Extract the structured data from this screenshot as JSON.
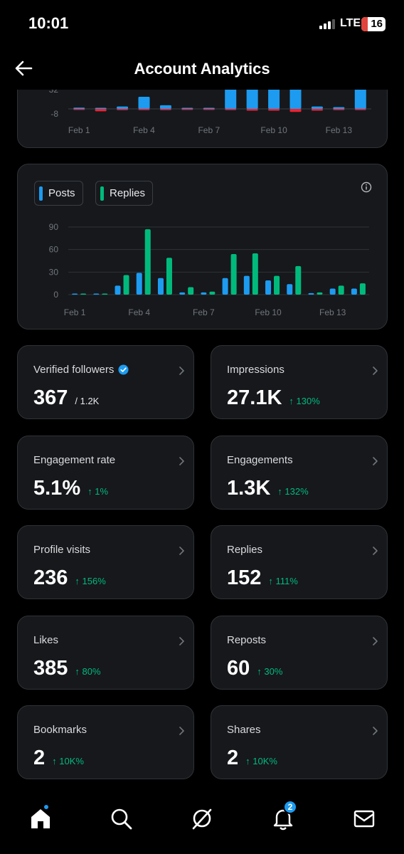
{
  "status_bar": {
    "time": "10:01",
    "network": "LTE",
    "battery": "16"
  },
  "header": {
    "title": "Account Analytics"
  },
  "colors": {
    "blue": "#1d9bf0",
    "red": "#f4212e",
    "green": "#00ba7c"
  },
  "chart_data": [
    {
      "type": "bar",
      "title": "",
      "yticks": [
        "32",
        "-8"
      ],
      "xticks": [
        "Feb 1",
        "Feb 4",
        "Feb 7",
        "Feb 10",
        "Feb 13"
      ],
      "categories": [
        "Feb 1",
        "Feb 2",
        "Feb 3",
        "Feb 4",
        "Feb 5",
        "Feb 6",
        "Feb 7",
        "Feb 8",
        "Feb 9",
        "Feb 10",
        "Feb 11",
        "Feb 12",
        "Feb 13",
        "Feb 14"
      ],
      "series": [
        {
          "values": [
            2,
            0,
            4,
            20,
            6,
            1,
            0,
            42,
            38,
            44,
            34,
            4,
            3,
            34
          ]
        },
        {
          "values": [
            -1,
            -4,
            -2,
            -2,
            -2,
            -1,
            -1,
            -2,
            -3,
            -3,
            -5,
            -3,
            -2,
            -2
          ]
        }
      ]
    },
    {
      "type": "bar",
      "yticks": [
        "90",
        "60",
        "30",
        "0"
      ],
      "ylim": [
        0,
        90
      ],
      "xticks": [
        "Feb 1",
        "Feb 4",
        "Feb 7",
        "Feb 10",
        "Feb 13"
      ],
      "categories": [
        "Feb 1",
        "Feb 2",
        "Feb 3",
        "Feb 4",
        "Feb 5",
        "Feb 6",
        "Feb 7",
        "Feb 8",
        "Feb 9",
        "Feb 10",
        "Feb 11",
        "Feb 12",
        "Feb 13",
        "Feb 14"
      ],
      "series": [
        {
          "name": "Posts",
          "values": [
            0,
            1,
            12,
            29,
            22,
            3,
            3,
            22,
            25,
            19,
            14,
            2,
            8,
            8
          ]
        },
        {
          "name": "Replies",
          "values": [
            1,
            0,
            26,
            87,
            49,
            10,
            4,
            54,
            55,
            25,
            38,
            3,
            12,
            15
          ]
        }
      ]
    }
  ],
  "legend": {
    "posts": "Posts",
    "replies": "Replies"
  },
  "metrics": [
    {
      "label": "Verified followers",
      "value": "367",
      "sub": "/ 1.2K",
      "change": ""
    },
    {
      "label": "Impressions",
      "value": "27.1K",
      "change": "↑ 130%"
    },
    {
      "label": "Engagement rate",
      "value": "5.1%",
      "change": "↑ 1%"
    },
    {
      "label": "Engagements",
      "value": "1.3K",
      "change": "↑ 132%"
    },
    {
      "label": "Profile visits",
      "value": "236",
      "change": "↑ 156%"
    },
    {
      "label": "Replies",
      "value": "152",
      "change": "↑ 111%"
    },
    {
      "label": "Likes",
      "value": "385",
      "change": "↑ 80%"
    },
    {
      "label": "Reposts",
      "value": "60",
      "change": "↑ 30%"
    },
    {
      "label": "Bookmarks",
      "value": "2",
      "change": "↑ 10K%"
    },
    {
      "label": "Shares",
      "value": "2",
      "change": "↑ 10K%"
    }
  ],
  "nav": {
    "notifications_count": "2"
  }
}
